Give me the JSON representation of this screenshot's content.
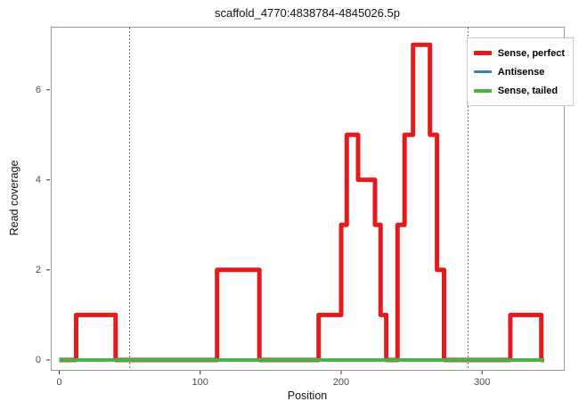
{
  "title": "scaffold_4770:4838784-4845026.5p",
  "axes": {
    "x_label": "Position",
    "y_label": "Read coverage"
  },
  "colors": {
    "background": "#ffffff",
    "panel_bg": "#ffffff",
    "panel_border": "#9a9a9a",
    "guide": "#3a3a3a",
    "tick": "#333333",
    "tick_label": "#4d4d4d",
    "text": "#111111",
    "legend_bg": "#ffffff",
    "legend_border": "#c9c9c9"
  },
  "legend": {
    "items": [
      {
        "label": "Sense, perfect",
        "color": "#E41A1C"
      },
      {
        "label": "Antisense",
        "color": "#377EB8"
      },
      {
        "label": "Sense, tailed",
        "color": "#4DAF4A"
      }
    ]
  },
  "chart_data": {
    "type": "line",
    "subtype": "step-coverage",
    "title": "scaffold_4770:4838784-4845026.5p",
    "xlabel": "Position",
    "ylabel": "Read coverage",
    "xlim": [
      0,
      350
    ],
    "ylim": [
      0,
      7
    ],
    "x_ticks": [
      0,
      100,
      200,
      300
    ],
    "y_ticks": [
      0,
      2,
      4,
      6
    ],
    "x_view": [
      -6,
      358
    ],
    "y_view": [
      -0.22,
      7.4
    ],
    "grid": false,
    "legend_position": "top-right",
    "vlines_dotted": [
      50,
      290
    ],
    "series": [
      {
        "name": "Sense, perfect",
        "color": "#E41A1C",
        "width": 5,
        "segments": [
          [
            0,
            12,
            0
          ],
          [
            12,
            40,
            1
          ],
          [
            40,
            112,
            0
          ],
          [
            112,
            142,
            2
          ],
          [
            142,
            184,
            0
          ],
          [
            184,
            200,
            1
          ],
          [
            200,
            204,
            3
          ],
          [
            204,
            212,
            5
          ],
          [
            212,
            224,
            4
          ],
          [
            224,
            228,
            3
          ],
          [
            228,
            232,
            1
          ],
          [
            232,
            240,
            0
          ],
          [
            240,
            245,
            3
          ],
          [
            245,
            251,
            5
          ],
          [
            251,
            263,
            7
          ],
          [
            263,
            268,
            5
          ],
          [
            268,
            273,
            2
          ],
          [
            273,
            320,
            0
          ],
          [
            320,
            342,
            1
          ],
          [
            342,
            344,
            0
          ]
        ]
      },
      {
        "name": "Antisense",
        "color": "#377EB8",
        "width": 2.5,
        "segments": [
          [
            0,
            344,
            0
          ]
        ]
      },
      {
        "name": "Sense, tailed",
        "color": "#4DAF4A",
        "width": 4,
        "segments": [
          [
            0,
            344,
            0
          ]
        ]
      }
    ]
  }
}
